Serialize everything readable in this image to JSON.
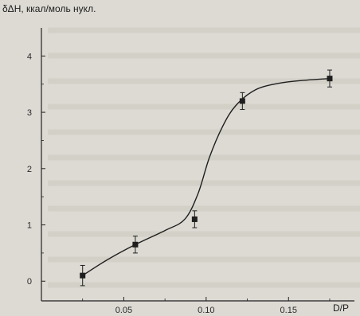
{
  "chart_data": {
    "type": "scatter",
    "title": "",
    "ylabel": "δΔH, ккал/моль нукл.",
    "xlabel": "D/P",
    "xlim": [
      0.0,
      0.19
    ],
    "ylim": [
      -0.35,
      4.5
    ],
    "x_ticks": [
      {
        "value": 0.05,
        "label": "0.05"
      },
      {
        "value": 0.1,
        "label": "0.10"
      },
      {
        "value": 0.15,
        "label": "0.15"
      }
    ],
    "y_ticks": [
      {
        "value": 0,
        "label": "0"
      },
      {
        "value": 1,
        "label": "1"
      },
      {
        "value": 2,
        "label": "2"
      },
      {
        "value": 3,
        "label": "3"
      },
      {
        "value": 4,
        "label": "4"
      }
    ],
    "grid": false,
    "legend": "none",
    "series": [
      {
        "marker": "square",
        "color": "#1f1f1f",
        "points": [
          {
            "x": 0.025,
            "y": 0.1,
            "err": 0.18
          },
          {
            "x": 0.057,
            "y": 0.65,
            "err": 0.15
          },
          {
            "x": 0.093,
            "y": 1.1,
            "err": 0.15
          },
          {
            "x": 0.122,
            "y": 3.2,
            "err": 0.15
          },
          {
            "x": 0.175,
            "y": 3.6,
            "err": 0.15
          }
        ]
      }
    ],
    "fit_curve": [
      [
        0.025,
        0.1
      ],
      [
        0.04,
        0.38
      ],
      [
        0.057,
        0.65
      ],
      [
        0.075,
        0.9
      ],
      [
        0.087,
        1.1
      ],
      [
        0.095,
        1.55
      ],
      [
        0.102,
        2.2
      ],
      [
        0.11,
        2.75
      ],
      [
        0.118,
        3.12
      ],
      [
        0.13,
        3.4
      ],
      [
        0.145,
        3.52
      ],
      [
        0.16,
        3.57
      ],
      [
        0.175,
        3.6
      ]
    ]
  }
}
